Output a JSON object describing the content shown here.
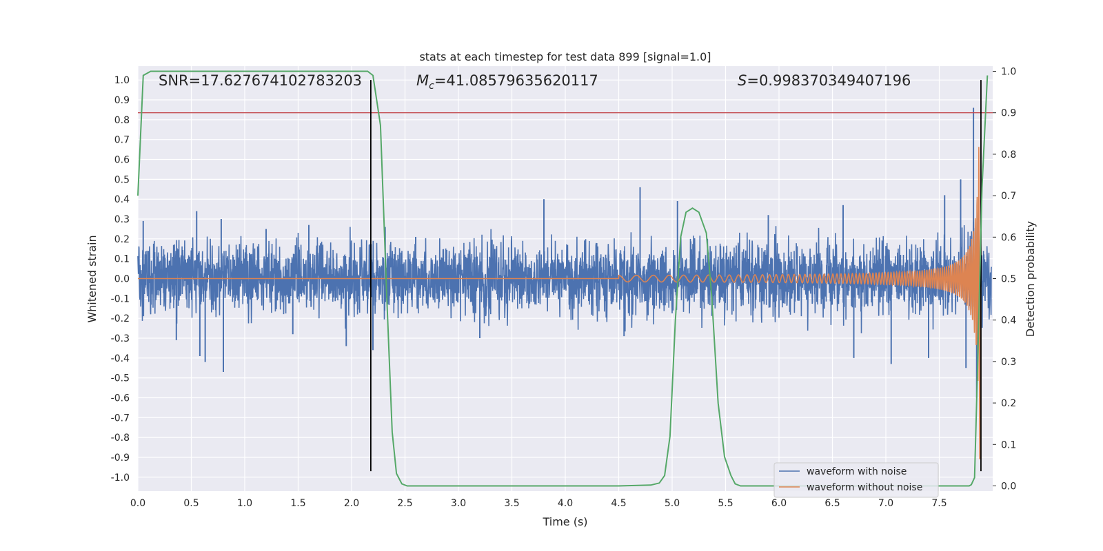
{
  "chart_data": {
    "type": "line",
    "title": "stats at each timestep for test data 899 [signal=1.0]",
    "xlabel": "Time (s)",
    "ylabel": "Whitened strain",
    "y2label": "Detection probability",
    "xlim": [
      0.0,
      8.0
    ],
    "ylim": [
      -1.07,
      1.07
    ],
    "y2lim": [
      -0.0125,
      1.0125
    ],
    "x_ticks": [
      "0.0",
      "0.5",
      "1.0",
      "1.5",
      "2.0",
      "2.5",
      "3.0",
      "3.5",
      "4.0",
      "4.5",
      "5.0",
      "5.5",
      "6.0",
      "6.5",
      "7.0",
      "7.5"
    ],
    "x_tick_values": [
      0.0,
      0.5,
      1.0,
      1.5,
      2.0,
      2.5,
      3.0,
      3.5,
      4.0,
      4.5,
      5.0,
      5.5,
      6.0,
      6.5,
      7.0,
      7.5
    ],
    "y_ticks": [
      "1.0",
      "0.9",
      "0.8",
      "0.7",
      "0.6",
      "0.5",
      "0.4",
      "0.3",
      "0.2",
      "0.1",
      "0.0",
      "-0.1",
      "-0.2",
      "-0.3",
      "-0.4",
      "-0.5",
      "-0.6",
      "-0.7",
      "-0.8",
      "-0.9",
      "-1.0"
    ],
    "y_tick_values": [
      1.0,
      0.9,
      0.8,
      0.7,
      0.6,
      0.5,
      0.4,
      0.3,
      0.2,
      0.1,
      0.0,
      -0.1,
      -0.2,
      -0.3,
      -0.4,
      -0.5,
      -0.6,
      -0.7,
      -0.8,
      -0.9,
      -1.0
    ],
    "y2_ticks": [
      "1.0",
      "0.9",
      "0.8",
      "0.7",
      "0.6",
      "0.5",
      "0.4",
      "0.3",
      "0.2",
      "0.1",
      "0.0"
    ],
    "y2_tick_values": [
      1.0,
      0.9,
      0.8,
      0.7,
      0.6,
      0.5,
      0.4,
      0.3,
      0.2,
      0.1,
      0.0
    ],
    "annotations": {
      "snr": "SNR=17.627674102783203",
      "mc_symbol": "M",
      "mc_sub": "c",
      "mc_value": "=41.08579635620117",
      "s_symbol": "S",
      "s_value": "=0.998370349407196"
    },
    "threshold": {
      "y2": 0.9,
      "color": "#c44e52"
    },
    "vlines": [
      2.18,
      7.89
    ],
    "series": [
      {
        "name": "waveform with noise",
        "color": "#4c72b0",
        "kind": "noise",
        "typical_amplitude": 0.2,
        "spikes": [
          {
            "x": 0.05,
            "y": 0.29
          },
          {
            "x": 0.36,
            "y": -0.31
          },
          {
            "x": 0.55,
            "y": 0.34
          },
          {
            "x": 0.58,
            "y": -0.39
          },
          {
            "x": 0.63,
            "y": -0.42
          },
          {
            "x": 0.78,
            "y": 0.3
          },
          {
            "x": 0.8,
            "y": -0.47
          },
          {
            "x": 1.2,
            "y": 0.25
          },
          {
            "x": 1.45,
            "y": -0.28
          },
          {
            "x": 1.6,
            "y": 0.27
          },
          {
            "x": 1.95,
            "y": -0.34
          },
          {
            "x": 2.2,
            "y": -0.36
          },
          {
            "x": 2.6,
            "y": 0.21
          },
          {
            "x": 3.2,
            "y": -0.3
          },
          {
            "x": 3.8,
            "y": 0.4
          },
          {
            "x": 4.55,
            "y": -0.29
          },
          {
            "x": 4.7,
            "y": 0.46
          },
          {
            "x": 5.05,
            "y": 0.39
          },
          {
            "x": 5.9,
            "y": 0.32
          },
          {
            "x": 6.6,
            "y": 0.37
          },
          {
            "x": 6.7,
            "y": -0.4
          },
          {
            "x": 7.05,
            "y": -0.43
          },
          {
            "x": 7.4,
            "y": -0.4
          },
          {
            "x": 7.55,
            "y": 0.42
          },
          {
            "x": 7.7,
            "y": 0.5
          },
          {
            "x": 7.75,
            "y": -0.45
          },
          {
            "x": 7.85,
            "y": -0.6
          },
          {
            "x": 7.82,
            "y": 0.86
          }
        ]
      },
      {
        "name": "waveform without noise",
        "color": "#dd8452",
        "kind": "chirp",
        "merger_time": 7.88,
        "start_time": 4.5,
        "peak_amplitude": 1.0,
        "low_amplitude": 0.012,
        "f_start": 6,
        "f_end": 65
      },
      {
        "name": "detection probability",
        "color": "#55a868",
        "axis": "right",
        "x": [
          0.0,
          0.05,
          0.12,
          0.2,
          1.5,
          2.15,
          2.2,
          2.27,
          2.33,
          2.38,
          2.42,
          2.47,
          2.52,
          2.6,
          3.5,
          4.5,
          4.8,
          4.88,
          4.93,
          4.98,
          5.03,
          5.08,
          5.13,
          5.19,
          5.25,
          5.32,
          5.37,
          5.43,
          5.49,
          5.55,
          5.59,
          5.64,
          5.7,
          7.2,
          7.78,
          7.8,
          7.83,
          7.86,
          7.9,
          7.95
        ],
        "y": [
          0.7,
          0.99,
          1.0,
          1.0,
          1.0,
          1.0,
          0.99,
          0.87,
          0.45,
          0.13,
          0.03,
          0.005,
          0.0,
          0.0,
          0.0,
          0.0,
          0.002,
          0.007,
          0.025,
          0.12,
          0.4,
          0.6,
          0.66,
          0.67,
          0.66,
          0.61,
          0.46,
          0.2,
          0.07,
          0.025,
          0.005,
          0.0,
          0.0,
          0.0,
          0.0,
          0.003,
          0.02,
          0.3,
          0.72,
          0.99
        ]
      }
    ],
    "legend": {
      "position": "lower-right",
      "items": [
        "waveform with noise",
        "waveform without noise"
      ]
    }
  }
}
